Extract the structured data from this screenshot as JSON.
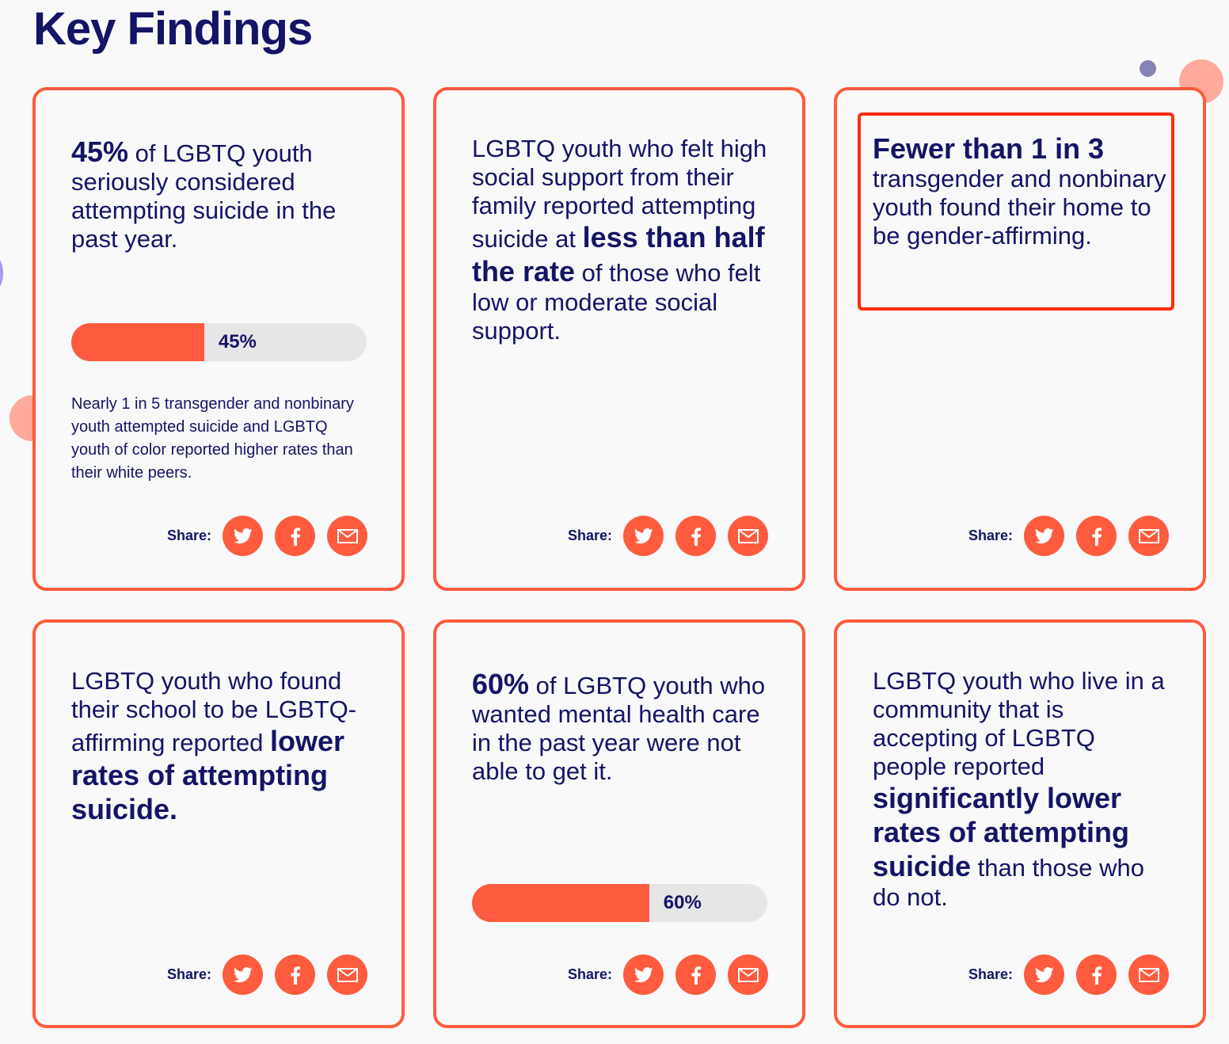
{
  "page": {
    "title": "Key Findings"
  },
  "colors": {
    "accent": "#ff5b3e",
    "text": "#141466",
    "bar_track": "#e6e6e6",
    "highlight_border": "#ff2a0e"
  },
  "share": {
    "label": "Share:",
    "buttons": [
      {
        "name": "twitter",
        "icon": "twitter-icon"
      },
      {
        "name": "facebook",
        "icon": "facebook-icon"
      },
      {
        "name": "email",
        "icon": "email-icon"
      }
    ]
  },
  "cards": [
    {
      "stat_bold": "45%",
      "stat_rest": " of LGBTQ youth seriously considered attempting suicide in the past year.",
      "progress_percent": 45,
      "progress_label": "45%",
      "note": "Nearly 1 in 5 transgender and nonbinary youth attempted suicide and LGBTQ youth of color reported higher rates than their white peers."
    },
    {
      "stat_pre": "LGBTQ youth who felt high social support from their family reported attempting suicide at ",
      "stat_bold": "less than half the rate",
      "stat_post": " of those who felt low or moderate social support."
    },
    {
      "stat_bold": "Fewer than 1 in 3",
      "stat_rest": " transgender and nonbinary youth found their home to be gender-affirming.",
      "highlighted": true
    },
    {
      "stat_pre": "LGBTQ youth who found their school to be LGBTQ-affirming reported ",
      "stat_bold": "lower rates of attempting suicide."
    },
    {
      "stat_bold": "60%",
      "stat_rest": " of LGBTQ youth who wanted mental health care in the past year were not able to get it.",
      "progress_percent": 60,
      "progress_label": "60%"
    },
    {
      "stat_pre": "LGBTQ youth who live in a community that is accepting of LGBTQ people reported ",
      "stat_bold": "significantly lower rates of attempting suicide",
      "stat_post": " than those who do not."
    }
  ]
}
